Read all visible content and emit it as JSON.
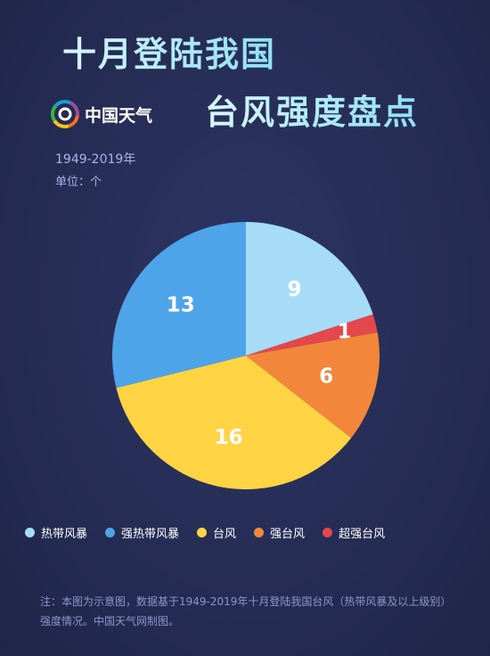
{
  "header": {
    "title_line1": "十月登陆我国",
    "title_line2": "台风强度盘点",
    "brand": "中国天气",
    "years": "1949-2019年",
    "unit": "单位：个"
  },
  "chart_data": {
    "type": "pie",
    "categories": [
      "热带风暴",
      "强热带风暴",
      "台风",
      "强台风",
      "超强台风"
    ],
    "values": [
      9,
      13,
      16,
      6,
      1
    ],
    "colors": [
      "#a7dcf7",
      "#4ea4e8",
      "#fed444",
      "#f2873b",
      "#e4484b"
    ],
    "slice_order": [
      "热带风暴",
      "超强台风",
      "强台风",
      "台风",
      "强热带风暴"
    ],
    "title": "十月登陆我国台风强度盘点",
    "legend_position": "bottom"
  },
  "footnote": "注：本图为示意图，数据基于1949-2019年十月登陆我国台风（热带风暴及以上级别）强度情况。中国天气网制图。"
}
